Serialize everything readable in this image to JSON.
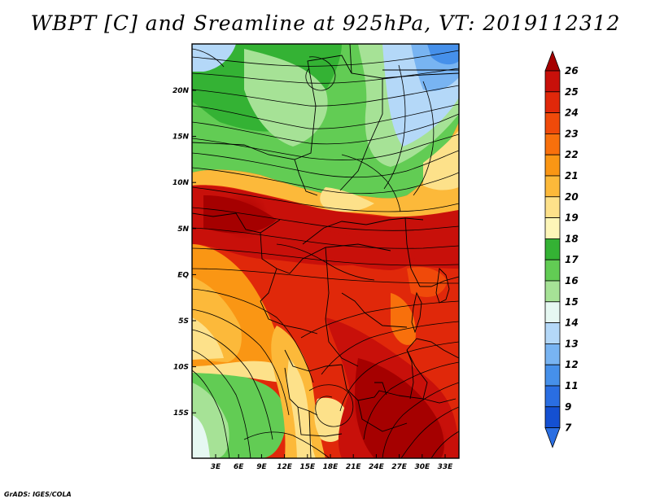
{
  "title": "WBPT [C] and Sreamline at 925hPa, VT: 2019112312",
  "credit": "GrADS: IGES/COLA",
  "map": {
    "lon_ticks": [
      "3E",
      "6E",
      "9E",
      "12E",
      "15E",
      "18E",
      "21E",
      "24E",
      "27E",
      "30E",
      "33E"
    ],
    "lat_ticks": [
      "20N",
      "15N",
      "10N",
      "5N",
      "EQ",
      "5S",
      "10S",
      "15S"
    ]
  },
  "colorbar": {
    "levels": [
      "26",
      "25",
      "24",
      "23",
      "22",
      "21",
      "20",
      "19",
      "18",
      "17",
      "16",
      "15",
      "14",
      "13",
      "12",
      "11",
      "9",
      "7"
    ],
    "colors": [
      "#a50000",
      "#c8100a",
      "#e0280a",
      "#f04a0a",
      "#f8700c",
      "#fa9614",
      "#fcb93a",
      "#fde18a",
      "#fdf6b8",
      "#34b234",
      "#62cc54",
      "#a6e296",
      "#e6f8f2",
      "#b4d8f8",
      "#78b4f2",
      "#4690ea",
      "#2a6ee2",
      "#1450d2",
      "#2a6ee2"
    ]
  }
}
